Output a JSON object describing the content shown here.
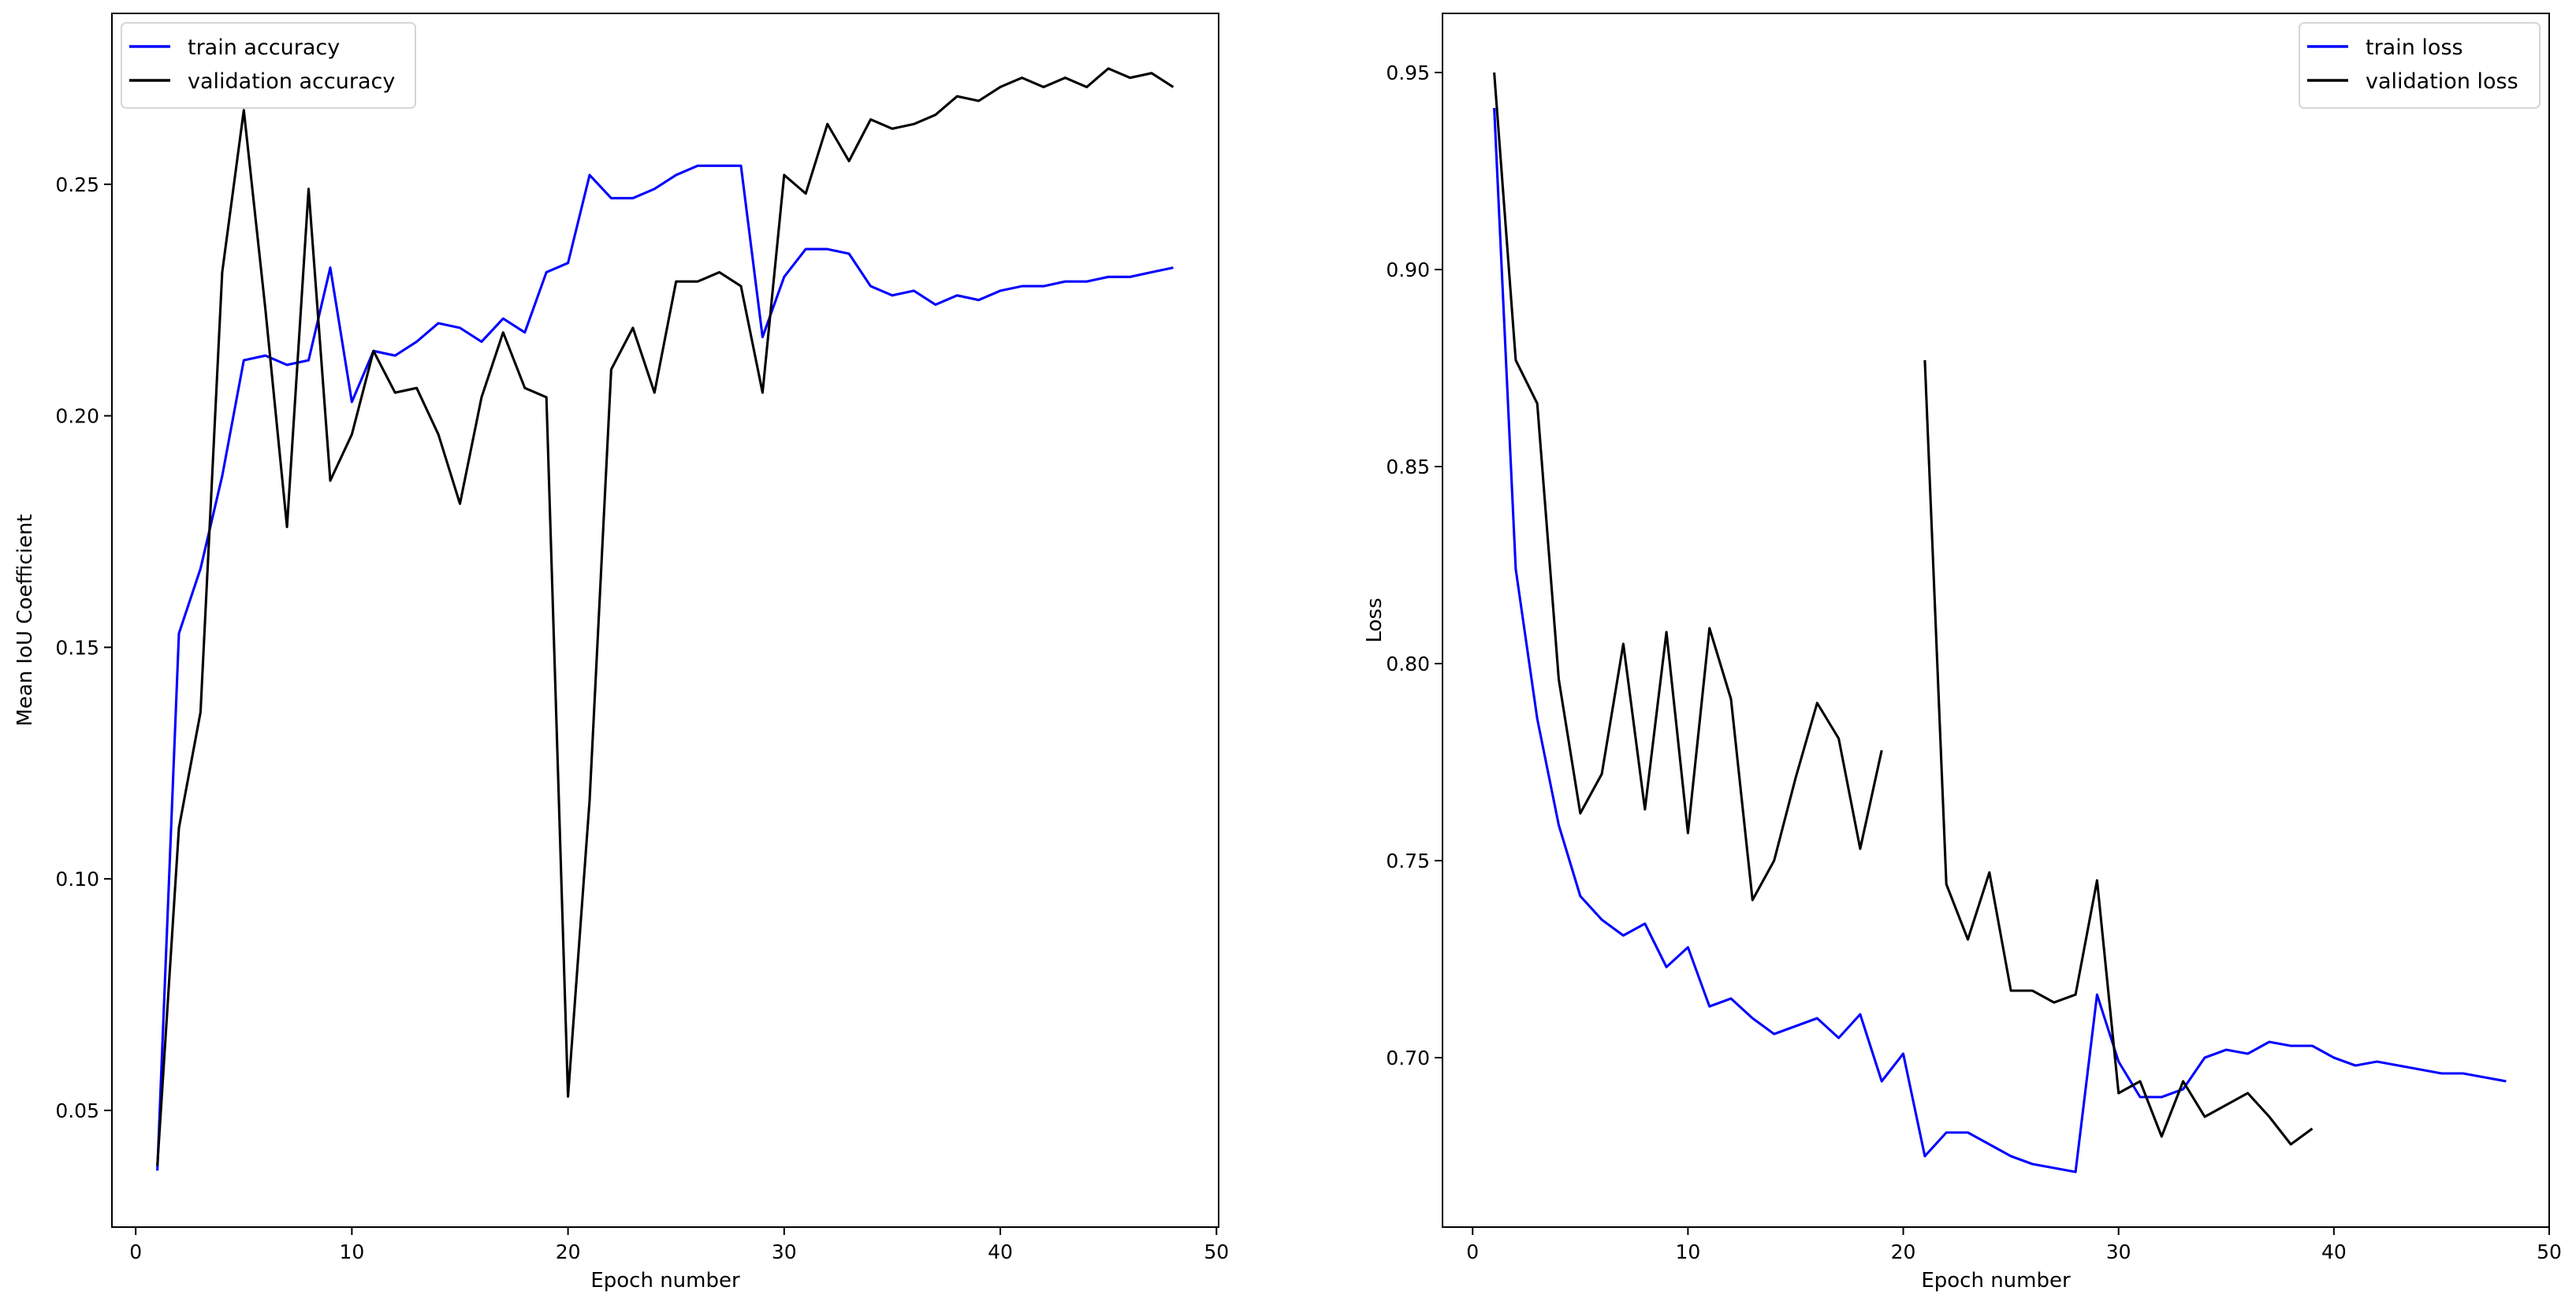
{
  "chart_data": [
    {
      "type": "line",
      "title": "",
      "xlabel": "Epoch number",
      "ylabel": "Mean IoU Coefficient",
      "xlim": [
        -1.1,
        50.1
      ],
      "ylim": [
        0.0248,
        0.2869
      ],
      "xticks": [
        0,
        10,
        20,
        30,
        40,
        50
      ],
      "yticks": [
        0.05,
        0.1,
        0.15,
        0.2,
        0.25
      ],
      "ytick_labels": [
        "0.05",
        "0.10",
        "0.15",
        "0.20",
        "0.25"
      ],
      "grid": false,
      "legend_position": "top-left",
      "x": [
        1,
        2,
        3,
        4,
        5,
        6,
        7,
        8,
        9,
        10,
        11,
        12,
        13,
        14,
        15,
        16,
        17,
        18,
        19,
        20,
        21,
        22,
        23,
        24,
        25,
        26,
        27,
        28,
        29,
        30,
        31,
        32,
        33,
        34,
        35,
        36,
        37,
        38,
        39,
        40,
        41,
        42,
        43,
        44,
        45,
        46,
        47,
        48
      ],
      "series": [
        {
          "name": "train accuracy",
          "color": "#0000ff",
          "values": [
            0.037,
            0.153,
            0.167,
            0.187,
            0.212,
            0.213,
            0.211,
            0.212,
            0.232,
            0.203,
            0.214,
            0.213,
            0.216,
            0.22,
            0.219,
            0.216,
            0.221,
            0.218,
            0.231,
            0.233,
            0.252,
            0.247,
            0.247,
            0.249,
            0.252,
            0.254,
            0.254,
            0.254,
            0.217,
            0.23,
            0.236,
            0.236,
            0.235,
            0.228,
            0.226,
            0.227,
            0.224,
            0.226,
            0.225,
            0.227,
            0.228,
            0.228,
            0.229,
            0.229,
            0.23,
            0.23,
            0.231,
            0.232
          ]
        },
        {
          "name": "validation accuracy",
          "color": "#000000",
          "values": [
            0.038,
            0.111,
            0.136,
            0.231,
            0.266,
            0.223,
            0.176,
            0.249,
            0.186,
            0.196,
            0.214,
            0.205,
            0.206,
            0.196,
            0.181,
            0.204,
            0.218,
            0.206,
            0.204,
            0.053,
            0.117,
            0.21,
            0.219,
            0.205,
            0.229,
            0.229,
            0.231,
            0.228,
            0.205,
            0.252,
            0.248,
            0.263,
            0.255,
            0.264,
            0.262,
            0.263,
            0.265,
            0.269,
            0.268,
            0.271,
            0.273,
            0.271,
            0.273,
            0.271,
            0.275,
            0.273,
            0.274,
            0.271
          ]
        }
      ]
    },
    {
      "type": "line",
      "title": "",
      "xlabel": "Epoch number",
      "ylabel": "Loss",
      "xlim": [
        -1.4,
        50.0
      ],
      "ylim": [
        0.657,
        0.965
      ],
      "xticks": [
        0,
        10,
        20,
        30,
        40,
        50
      ],
      "yticks": [
        0.7,
        0.75,
        0.8,
        0.85,
        0.9,
        0.95
      ],
      "ytick_labels": [
        "0.70",
        "0.75",
        "0.80",
        "0.85",
        "0.90",
        "0.95"
      ],
      "grid": false,
      "legend_position": "top-right",
      "x": [
        1,
        2,
        3,
        4,
        5,
        6,
        7,
        8,
        9,
        10,
        11,
        12,
        13,
        14,
        15,
        16,
        17,
        18,
        19,
        20,
        21,
        22,
        23,
        24,
        25,
        26,
        27,
        28,
        29,
        30,
        31,
        32,
        33,
        34,
        35,
        36,
        37,
        38,
        39,
        40,
        41,
        42,
        43,
        44,
        45,
        46,
        47,
        48
      ],
      "series": [
        {
          "name": "train loss",
          "color": "#0000ff",
          "values": [
            0.941,
            0.824,
            0.786,
            0.759,
            0.741,
            0.735,
            0.731,
            0.734,
            0.723,
            0.728,
            0.713,
            0.715,
            0.71,
            0.706,
            0.708,
            0.71,
            0.705,
            0.711,
            0.694,
            0.701,
            0.675,
            0.681,
            0.681,
            0.678,
            0.675,
            0.673,
            0.672,
            0.671,
            0.716,
            0.699,
            0.69,
            0.69,
            0.692,
            0.7,
            0.702,
            0.701,
            0.704,
            0.703,
            0.703,
            0.7,
            0.698,
            0.699,
            0.698,
            0.697,
            0.696,
            0.696,
            0.695,
            0.694
          ]
        },
        {
          "name": "validation loss",
          "color": "#000000",
          "values": [
            0.95,
            0.877,
            0.866,
            0.796,
            0.762,
            0.772,
            0.805,
            0.763,
            0.808,
            0.757,
            0.809,
            0.791,
            0.74,
            0.75,
            0.771,
            0.79,
            0.781,
            0.753,
            0.778,
            null,
            0.877,
            0.744,
            0.73,
            0.747,
            0.717,
            0.717,
            0.714,
            0.716,
            0.745,
            0.691,
            0.694,
            0.68,
            0.694,
            0.685,
            0.688,
            0.691,
            0.685,
            0.678,
            0.682,
            null,
            null,
            null,
            null,
            null,
            null,
            null,
            null,
            null
          ]
        }
      ]
    }
  ]
}
